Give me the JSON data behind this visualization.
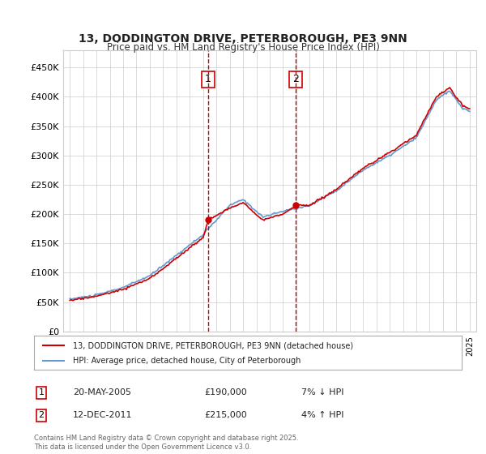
{
  "title_line1": "13, DODDINGTON DRIVE, PETERBOROUGH, PE3 9NN",
  "title_line2": "Price paid vs. HM Land Registry's House Price Index (HPI)",
  "xlabel": "",
  "ylabel": "",
  "ylim": [
    0,
    480000
  ],
  "yticks": [
    0,
    50000,
    100000,
    150000,
    200000,
    250000,
    300000,
    350000,
    400000,
    450000
  ],
  "ytick_labels": [
    "£0",
    "£50K",
    "£100K",
    "£150K",
    "£200K",
    "£250K",
    "£300K",
    "£350K",
    "£400K",
    "£450K"
  ],
  "sale1_date_label": "20-MAY-2005",
  "sale1_price": 190000,
  "sale1_hpi_diff": "7% ↓ HPI",
  "sale1_x": 2005.38,
  "sale2_date_label": "12-DEC-2011",
  "sale2_price": 215000,
  "sale2_hpi_diff": "4% ↑ HPI",
  "sale2_x": 2011.95,
  "legend_line1": "13, DODDINGTON DRIVE, PETERBOROUGH, PE3 9NN (detached house)",
  "legend_line2": "HPI: Average price, detached house, City of Peterborough",
  "footnote": "Contains HM Land Registry data © Crown copyright and database right 2025.\nThis data is licensed under the Open Government Licence v3.0.",
  "line_color_red": "#cc0000",
  "line_color_blue": "#6699cc",
  "shade_color": "#ddeeff",
  "marker_color_red": "#cc0000",
  "vline_color": "#cc0000",
  "background_color": "#ffffff",
  "grid_color": "#cccccc",
  "sale_box_color": "#cc0000"
}
